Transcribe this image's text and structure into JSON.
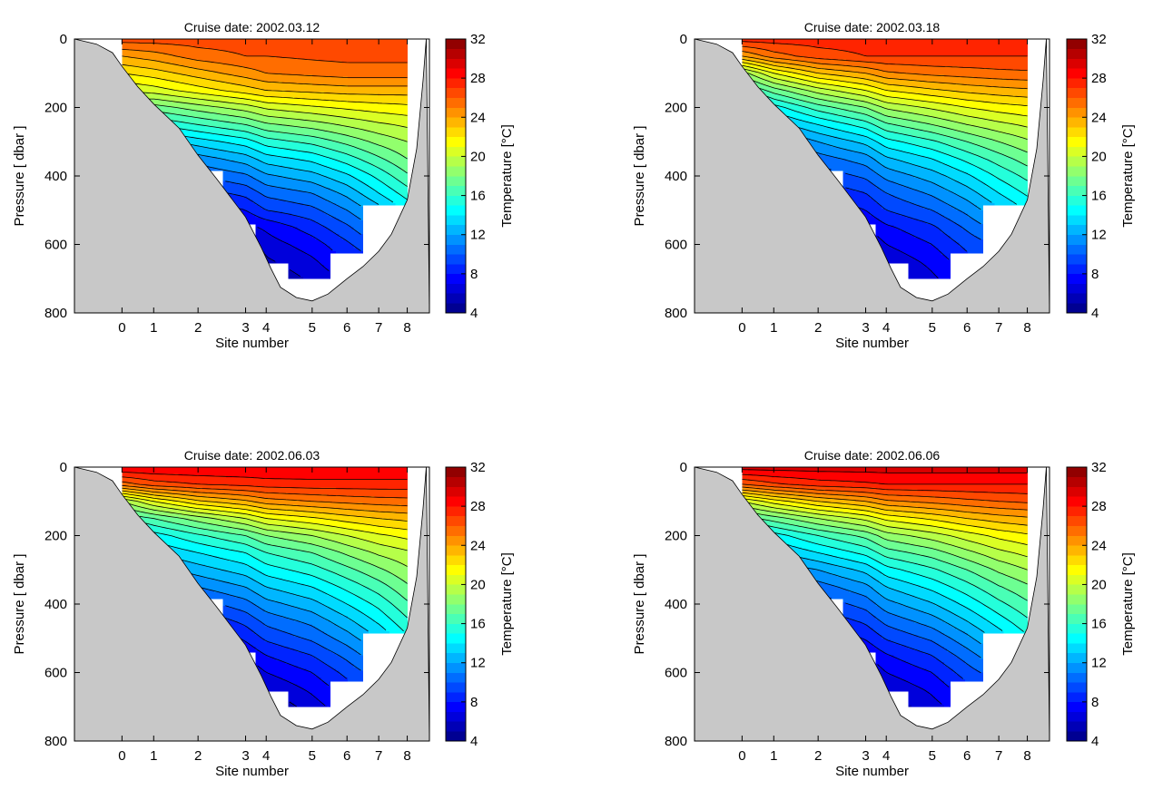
{
  "figure": {
    "colorbar": {
      "label": "Temperature [°C]",
      "min": 4,
      "max": 32,
      "step": 1,
      "ticks": [
        4,
        8,
        12,
        16,
        20,
        24,
        28,
        32
      ],
      "colormap": "jet"
    },
    "x_axis": {
      "label": "Site number",
      "tick_labels": [
        "0",
        "1",
        "2",
        "3",
        "4",
        "5",
        "6",
        "7",
        "8"
      ],
      "site_positions_km": [
        0,
        1,
        2.4,
        3.9,
        4.55,
        6,
        7.1,
        8.1,
        9.0
      ],
      "range_km": [
        -1.5,
        9.7
      ]
    },
    "y_axis": {
      "label": "Pressure [ dbar ]",
      "ticks": [
        0,
        200,
        400,
        600,
        800
      ],
      "range": [
        0,
        800
      ],
      "inverted": true
    },
    "site_max_pressure": [
      140,
      260,
      385,
      540,
      655,
      700,
      625,
      485,
      485
    ],
    "seafloor_profile": [
      [
        -1.5,
        0
      ],
      [
        -0.8,
        15
      ],
      [
        -0.3,
        40
      ],
      [
        0,
        80
      ],
      [
        0.5,
        140
      ],
      [
        1,
        190
      ],
      [
        1.8,
        260
      ],
      [
        2.4,
        340
      ],
      [
        3,
        410
      ],
      [
        3.9,
        520
      ],
      [
        4.4,
        610
      ],
      [
        4.7,
        670
      ],
      [
        5,
        725
      ],
      [
        5.5,
        755
      ],
      [
        6,
        765
      ],
      [
        6.5,
        745
      ],
      [
        7.1,
        700
      ],
      [
        7.6,
        665
      ],
      [
        8.1,
        620
      ],
      [
        8.5,
        570
      ],
      [
        9,
        470
      ],
      [
        9.3,
        320
      ],
      [
        9.5,
        120
      ],
      [
        9.6,
        0
      ]
    ],
    "contour_start": 5,
    "contour_end": 31,
    "contour_interval": 1,
    "panel_layout": "2x2",
    "background_fill": "#c8c8c8"
  },
  "chart_data": [
    {
      "type": "heatmap",
      "title": "Cruise date: 2002.03.12",
      "xlabel": "Site number",
      "ylabel": "Pressure [ dbar ]",
      "colorbar_label": "Temperature [°C]",
      "ylim": [
        800,
        0
      ],
      "clim": [
        4,
        32
      ],
      "x": [
        "0",
        "1",
        "2",
        "3",
        "4",
        "5",
        "6",
        "7",
        "8"
      ],
      "pressure": [
        0,
        50,
        100,
        150,
        200,
        250,
        300,
        350,
        400,
        450,
        500,
        550,
        600,
        650,
        700
      ],
      "temperature": [
        [
          26.5,
          26.5,
          26.5,
          26.5,
          26.5,
          26.5,
          26.5,
          26.5,
          26.5
        ],
        [
          24.0,
          24.5,
          25.5,
          26.0,
          26.0,
          26.2,
          26.3,
          26.3,
          26.3
        ],
        [
          22.0,
          22.5,
          23.5,
          24.5,
          25.0,
          25.3,
          25.5,
          25.5,
          25.5
        ],
        [
          20.0,
          20.5,
          21.5,
          22.5,
          23.0,
          23.3,
          23.5,
          23.5,
          23.5
        ],
        [
          null,
          17.5,
          18.5,
          19.5,
          20.2,
          20.8,
          21.2,
          21.5,
          21.7
        ],
        [
          null,
          15.0,
          16.0,
          17.0,
          17.8,
          18.5,
          19.2,
          19.8,
          20.2
        ],
        [
          null,
          null,
          13.5,
          14.5,
          15.5,
          16.3,
          17.3,
          18.3,
          19.0
        ],
        [
          null,
          null,
          11.5,
          12.5,
          13.5,
          14.3,
          15.5,
          16.8,
          18.0
        ],
        [
          null,
          null,
          10.0,
          10.8,
          11.8,
          12.6,
          13.8,
          15.3,
          16.8
        ],
        [
          null,
          null,
          null,
          9.3,
          10.3,
          11.0,
          12.3,
          14.0,
          15.5
        ],
        [
          null,
          null,
          null,
          8.0,
          9.0,
          9.7,
          11.0,
          12.5,
          null
        ],
        [
          null,
          null,
          null,
          null,
          7.2,
          8.5,
          9.8,
          11.3,
          null
        ],
        [
          null,
          null,
          null,
          null,
          6.5,
          7.5,
          8.8,
          null,
          null
        ],
        [
          null,
          null,
          null,
          null,
          null,
          6.8,
          8.0,
          null,
          null
        ],
        [
          null,
          null,
          null,
          null,
          null,
          6.2,
          null,
          null,
          null
        ]
      ]
    },
    {
      "type": "heatmap",
      "title": "Cruise date: 2002.03.18",
      "xlabel": "Site number",
      "ylabel": "Pressure [ dbar ]",
      "colorbar_label": "Temperature [°C]",
      "ylim": [
        800,
        0
      ],
      "clim": [
        4,
        32
      ],
      "x": [
        "0",
        "1",
        "2",
        "3",
        "4",
        "5",
        "6",
        "7",
        "8"
      ],
      "pressure": [
        0,
        50,
        100,
        150,
        200,
        250,
        300,
        350,
        400,
        450,
        500,
        550,
        600,
        650,
        700
      ],
      "temperature": [
        [
          27.5,
          27.5,
          27.5,
          27.5,
          27.5,
          27.5,
          27.5,
          27.5,
          27.5
        ],
        [
          24.0,
          25.5,
          26.5,
          27.0,
          27.0,
          27.0,
          27.0,
          27.0,
          27.0
        ],
        [
          18.5,
          21.0,
          23.0,
          24.0,
          24.8,
          25.3,
          25.5,
          25.7,
          25.8
        ],
        [
          15.5,
          17.5,
          19.5,
          21.0,
          22.0,
          22.8,
          23.3,
          23.6,
          23.8
        ],
        [
          null,
          14.5,
          16.5,
          18.0,
          19.2,
          20.2,
          21.0,
          21.5,
          21.8
        ],
        [
          null,
          12.5,
          14.0,
          15.5,
          16.8,
          18.0,
          19.0,
          19.7,
          20.2
        ],
        [
          null,
          null,
          12.0,
          13.3,
          14.6,
          15.8,
          17.0,
          18.0,
          18.8
        ],
        [
          null,
          null,
          10.5,
          11.5,
          12.8,
          14.0,
          15.3,
          16.5,
          17.5
        ],
        [
          null,
          null,
          9.3,
          10.2,
          11.3,
          12.5,
          13.8,
          15.2,
          16.3
        ],
        [
          null,
          null,
          null,
          9.0,
          10.0,
          11.2,
          12.5,
          14.0,
          15.2
        ],
        [
          null,
          null,
          null,
          8.0,
          9.0,
          10.0,
          11.3,
          12.8,
          null
        ],
        [
          null,
          null,
          null,
          null,
          7.8,
          8.8,
          10.2,
          11.5,
          null
        ],
        [
          null,
          null,
          null,
          null,
          7.0,
          8.0,
          9.3,
          null,
          null
        ],
        [
          null,
          null,
          null,
          null,
          null,
          7.3,
          8.6,
          null,
          null
        ],
        [
          null,
          null,
          null,
          null,
          null,
          6.8,
          null,
          null,
          null
        ]
      ]
    },
    {
      "type": "heatmap",
      "title": "Cruise date: 2002.06.03",
      "xlabel": "Site number",
      "ylabel": "Pressure [ dbar ]",
      "colorbar_label": "Temperature [°C]",
      "ylim": [
        800,
        0
      ],
      "clim": [
        4,
        32
      ],
      "x": [
        "0",
        "1",
        "2",
        "3",
        "4",
        "5",
        "6",
        "7",
        "8"
      ],
      "pressure": [
        0,
        50,
        100,
        150,
        200,
        250,
        300,
        350,
        400,
        450,
        500,
        550,
        600,
        650,
        700
      ],
      "temperature": [
        [
          29.0,
          29.0,
          29.0,
          29.0,
          29.0,
          29.0,
          29.0,
          29.0,
          29.0
        ],
        [
          25.5,
          26.5,
          27.0,
          27.3,
          27.5,
          27.6,
          27.6,
          27.6,
          27.6
        ],
        [
          19.0,
          21.0,
          22.8,
          23.8,
          24.5,
          25.0,
          25.3,
          25.5,
          25.6
        ],
        [
          16.0,
          17.0,
          18.5,
          20.0,
          21.0,
          21.8,
          22.5,
          23.0,
          23.3
        ],
        [
          null,
          14.5,
          15.8,
          17.0,
          18.0,
          19.0,
          20.0,
          20.8,
          21.3
        ],
        [
          null,
          13.0,
          14.0,
          15.0,
          16.0,
          17.0,
          18.2,
          19.2,
          19.8
        ],
        [
          null,
          null,
          12.5,
          13.5,
          14.5,
          15.5,
          16.7,
          17.8,
          18.8
        ],
        [
          null,
          null,
          11.0,
          12.0,
          13.0,
          14.0,
          15.3,
          16.5,
          17.8
        ],
        [
          null,
          null,
          9.5,
          10.6,
          11.6,
          12.6,
          14.0,
          15.3,
          16.8
        ],
        [
          null,
          null,
          null,
          9.3,
          10.3,
          11.3,
          12.7,
          14.2,
          15.8
        ],
        [
          null,
          null,
          null,
          8.2,
          9.2,
          10.2,
          11.5,
          13.0,
          null
        ],
        [
          null,
          null,
          null,
          null,
          8.0,
          9.0,
          10.3,
          11.8,
          null
        ],
        [
          null,
          null,
          null,
          null,
          7.0,
          8.0,
          9.3,
          null,
          null
        ],
        [
          null,
          null,
          null,
          null,
          null,
          7.2,
          8.5,
          null,
          null
        ],
        [
          null,
          null,
          null,
          null,
          null,
          6.5,
          null,
          null,
          null
        ]
      ]
    },
    {
      "type": "heatmap",
      "title": "Cruise date: 2002.06.06",
      "xlabel": "Site number",
      "ylabel": "Pressure [ dbar ]",
      "colorbar_label": "Temperature [°C]",
      "ylim": [
        800,
        0
      ],
      "clim": [
        4,
        32
      ],
      "x": [
        "0",
        "1",
        "2",
        "3",
        "4",
        "5",
        "6",
        "7",
        "8"
      ],
      "pressure": [
        0,
        50,
        100,
        150,
        200,
        250,
        300,
        350,
        400,
        450,
        500,
        550,
        600,
        650,
        700
      ],
      "temperature": [
        [
          29.5,
          29.5,
          29.5,
          29.5,
          29.5,
          29.5,
          29.5,
          29.5,
          29.5
        ],
        [
          26.0,
          26.8,
          27.5,
          27.8,
          28.0,
          28.0,
          28.0,
          28.0,
          28.0
        ],
        [
          20.0,
          21.5,
          23.0,
          24.0,
          24.8,
          25.3,
          25.7,
          26.0,
          26.2
        ],
        [
          16.5,
          17.5,
          19.0,
          20.3,
          21.3,
          22.2,
          23.0,
          23.5,
          23.8
        ],
        [
          null,
          14.5,
          16.0,
          17.3,
          18.5,
          19.5,
          20.5,
          21.3,
          21.8
        ],
        [
          null,
          12.8,
          14.0,
          15.3,
          16.5,
          17.5,
          18.7,
          19.7,
          20.3
        ],
        [
          null,
          null,
          12.0,
          13.3,
          14.6,
          15.8,
          17.0,
          18.2,
          19.0
        ],
        [
          null,
          null,
          10.5,
          11.7,
          13.0,
          14.3,
          15.6,
          16.9,
          17.8
        ],
        [
          null,
          null,
          9.3,
          10.4,
          11.6,
          12.9,
          14.3,
          15.7,
          16.8
        ],
        [
          null,
          null,
          null,
          9.2,
          10.3,
          11.5,
          13.0,
          14.5,
          15.8
        ],
        [
          null,
          null,
          null,
          8.1,
          9.1,
          10.2,
          11.7,
          13.3,
          null
        ],
        [
          null,
          null,
          null,
          null,
          7.9,
          9.0,
          10.5,
          12.0,
          null
        ],
        [
          null,
          null,
          null,
          null,
          7.0,
          8.0,
          9.5,
          null,
          null
        ],
        [
          null,
          null,
          null,
          null,
          null,
          7.2,
          8.6,
          null,
          null
        ],
        [
          null,
          null,
          null,
          null,
          null,
          6.6,
          null,
          null,
          null
        ]
      ]
    }
  ]
}
